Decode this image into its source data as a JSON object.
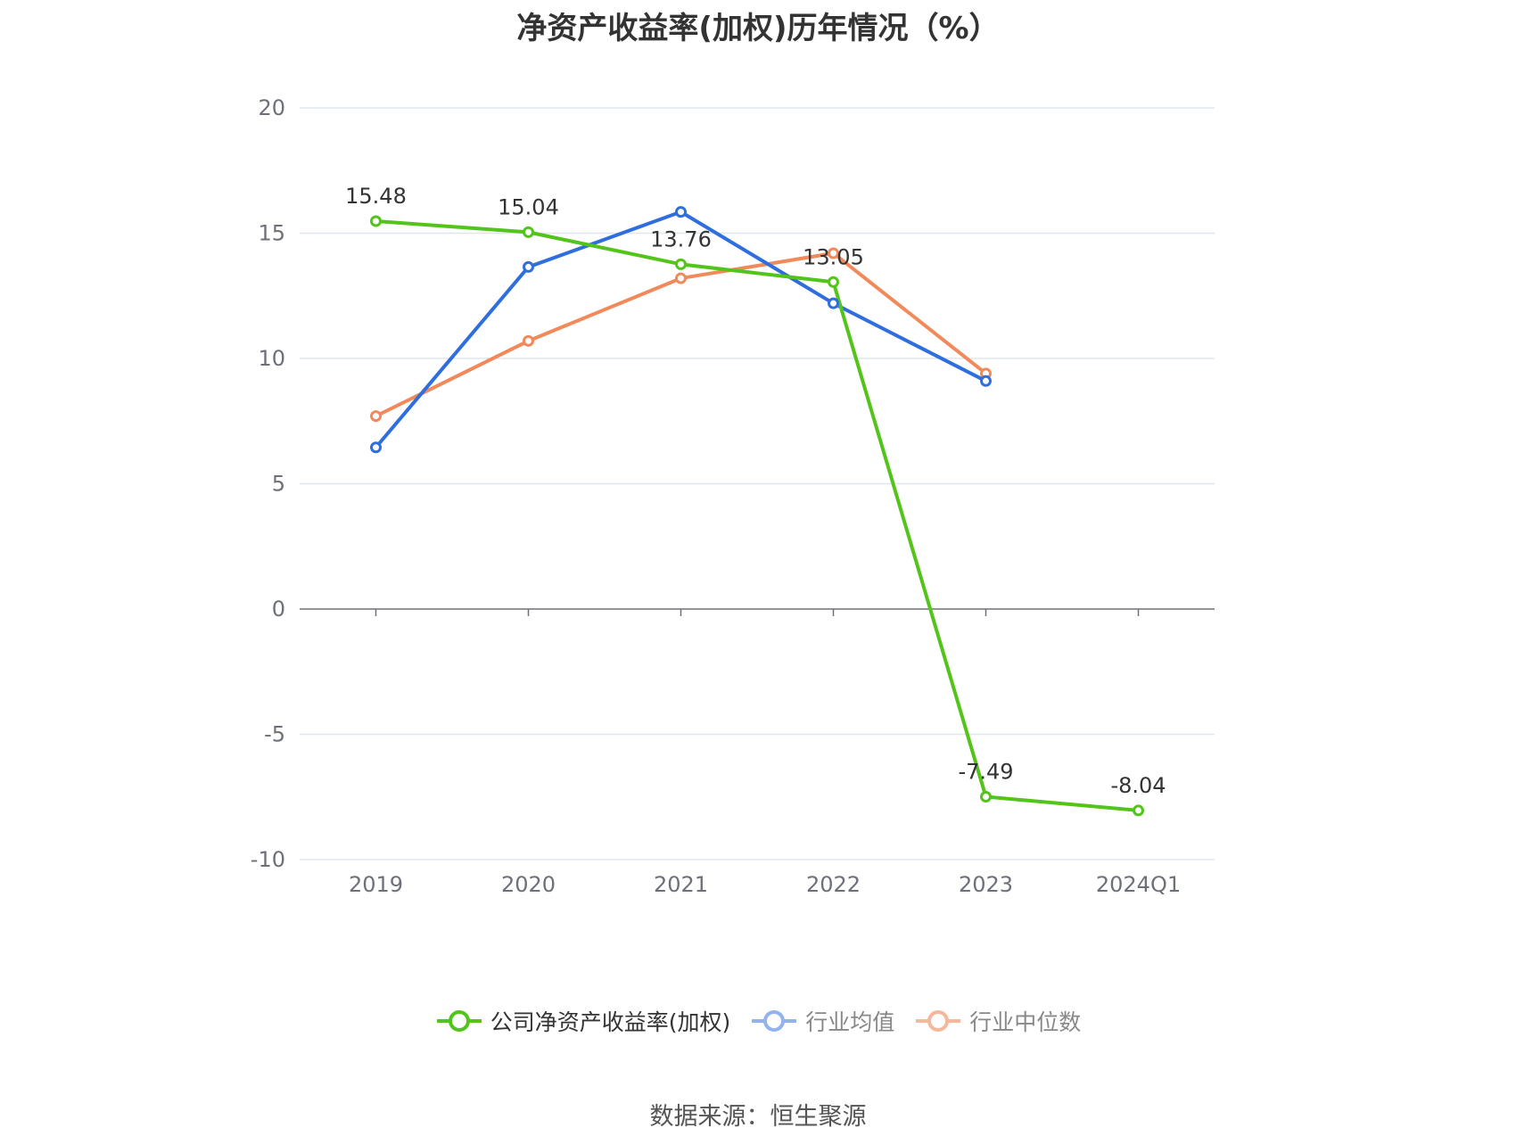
{
  "chart_data": {
    "type": "line",
    "title": "净资产收益率(加权)历年情况（%）",
    "categories": [
      "2019",
      "2020",
      "2021",
      "2022",
      "2023",
      "2024Q1"
    ],
    "ylim": [
      -10,
      20
    ],
    "yticks": [
      "20",
      "15",
      "10",
      "5",
      "0",
      "-5",
      "-10"
    ],
    "ytick_values": [
      20,
      15,
      10,
      5,
      0,
      -5,
      -10
    ],
    "grid": true,
    "legend_position": "bottom",
    "series": [
      {
        "name": "公司净资产收益率(加权)",
        "color": "#52c41a",
        "values": [
          15.48,
          15.04,
          13.76,
          13.05,
          -7.49,
          -8.04
        ],
        "labels": [
          "15.48",
          "15.04",
          "13.76",
          "13.05",
          "-7.49",
          "-8.04"
        ]
      },
      {
        "name": "行业均值",
        "color": "#2f6ede",
        "values": [
          6.45,
          13.65,
          15.85,
          12.2,
          9.1,
          null
        ]
      },
      {
        "name": "行业中位数",
        "color": "#f2895a",
        "values": [
          7.7,
          10.7,
          13.2,
          14.2,
          9.4,
          null
        ]
      }
    ]
  },
  "source": "数据来源：恒生聚源"
}
